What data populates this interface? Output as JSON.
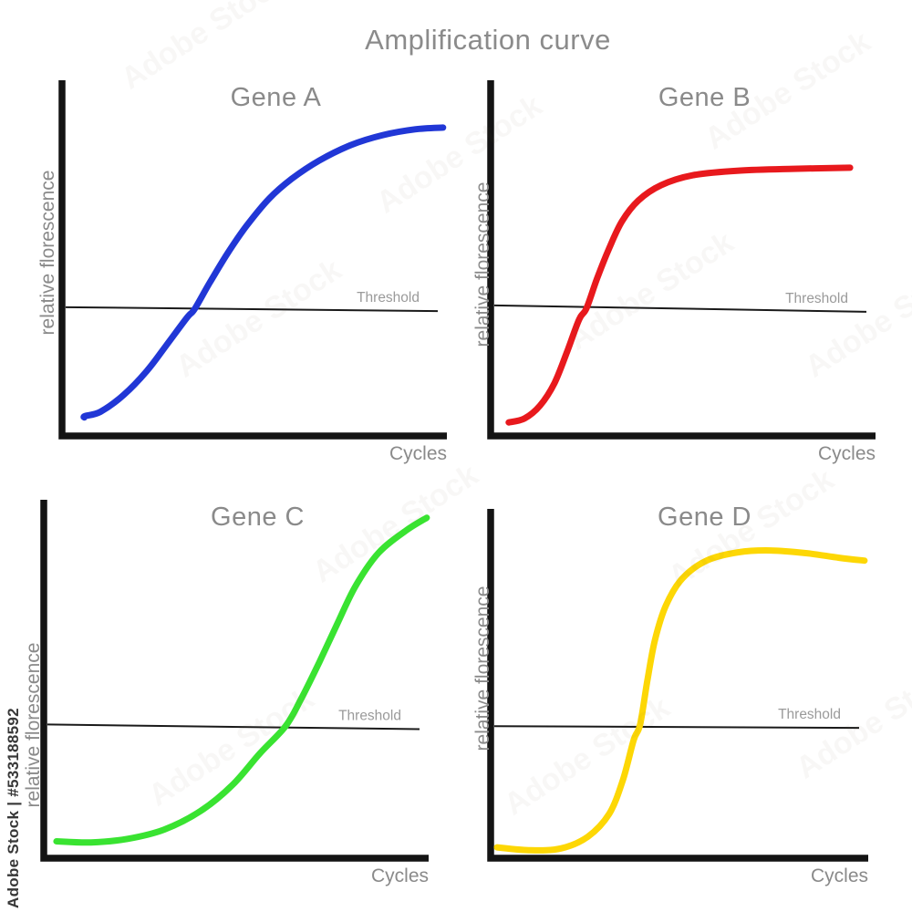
{
  "page": {
    "background_color": "#ffffff"
  },
  "watermark": {
    "side_text": "Adobe Stock | #533188592",
    "ghost_text": "Adobe Stock"
  },
  "chart_data": {
    "type": "line",
    "title": "Amplification curve",
    "xlabel": "Cycles",
    "ylabel": "relative florescence",
    "threshold_label": "Threshold",
    "gridlines": false,
    "tick_labels": false,
    "axis_ranges": {
      "x": "unlabeled cycles, increasing right",
      "y": "unlabeled relative florescence, increasing up (0-1 normalized below)"
    },
    "colors": {
      "axis": "#141414",
      "threshold_line": "#1a1a1a",
      "threshold_text": "#9a9a9a",
      "title_text": "#8b8b8b",
      "label_text": "#8a8a8a"
    },
    "subplots": [
      {
        "id": "gene-a",
        "title": "Gene A",
        "color": "#2137d6",
        "threshold": {
          "y_start": 0.362,
          "y_end": 0.351
        },
        "points": [
          [
            0.058,
            0.052
          ],
          [
            0.06,
            0.056
          ],
          [
            0.1,
            0.068
          ],
          [
            0.16,
            0.115
          ],
          [
            0.22,
            0.182
          ],
          [
            0.27,
            0.253
          ],
          [
            0.325,
            0.333
          ],
          [
            0.344,
            0.356
          ],
          [
            0.384,
            0.431
          ],
          [
            0.431,
            0.515
          ],
          [
            0.479,
            0.59
          ],
          [
            0.538,
            0.667
          ],
          [
            0.597,
            0.723
          ],
          [
            0.668,
            0.774
          ],
          [
            0.751,
            0.818
          ],
          [
            0.834,
            0.846
          ],
          [
            0.917,
            0.862
          ],
          [
            0.99,
            0.867
          ]
        ]
      },
      {
        "id": "gene-b",
        "title": "Gene B",
        "color": "#e8191d",
        "threshold": {
          "y_start": 0.367,
          "y_end": 0.349
        },
        "points": [
          [
            0.047,
            0.038
          ],
          [
            0.088,
            0.049
          ],
          [
            0.128,
            0.085
          ],
          [
            0.166,
            0.149
          ],
          [
            0.199,
            0.238
          ],
          [
            0.23,
            0.328
          ],
          [
            0.249,
            0.359
          ],
          [
            0.277,
            0.444
          ],
          [
            0.308,
            0.528
          ],
          [
            0.341,
            0.603
          ],
          [
            0.384,
            0.662
          ],
          [
            0.443,
            0.705
          ],
          [
            0.526,
            0.733
          ],
          [
            0.645,
            0.746
          ],
          [
            0.787,
            0.751
          ],
          [
            0.934,
            0.754
          ]
        ]
      },
      {
        "id": "gene-c",
        "title": "Gene C",
        "color": "#39e331",
        "threshold": {
          "y_start": 0.373,
          "y_end": 0.36
        },
        "points": [
          [
            0.033,
            0.047
          ],
          [
            0.123,
            0.044
          ],
          [
            0.218,
            0.054
          ],
          [
            0.313,
            0.08
          ],
          [
            0.408,
            0.132
          ],
          [
            0.491,
            0.205
          ],
          [
            0.562,
            0.293
          ],
          [
            0.628,
            0.368
          ],
          [
            0.668,
            0.443
          ],
          [
            0.716,
            0.547
          ],
          [
            0.763,
            0.655
          ],
          [
            0.81,
            0.759
          ],
          [
            0.87,
            0.852
          ],
          [
            0.941,
            0.914
          ],
          [
            0.995,
            0.95
          ]
        ]
      },
      {
        "id": "gene-d",
        "title": "Gene D",
        "color": "#fdd705",
        "threshold": {
          "y_start": 0.378,
          "y_end": 0.373
        },
        "points": [
          [
            0.017,
            0.031
          ],
          [
            0.101,
            0.023
          ],
          [
            0.186,
            0.028
          ],
          [
            0.258,
            0.062
          ],
          [
            0.314,
            0.127
          ],
          [
            0.35,
            0.223
          ],
          [
            0.379,
            0.339
          ],
          [
            0.396,
            0.383
          ],
          [
            0.415,
            0.508
          ],
          [
            0.435,
            0.624
          ],
          [
            0.464,
            0.723
          ],
          [
            0.507,
            0.8
          ],
          [
            0.572,
            0.852
          ],
          [
            0.657,
            0.876
          ],
          [
            0.742,
            0.881
          ],
          [
            0.838,
            0.873
          ],
          [
            0.923,
            0.86
          ],
          [
            0.99,
            0.852
          ]
        ]
      }
    ]
  }
}
